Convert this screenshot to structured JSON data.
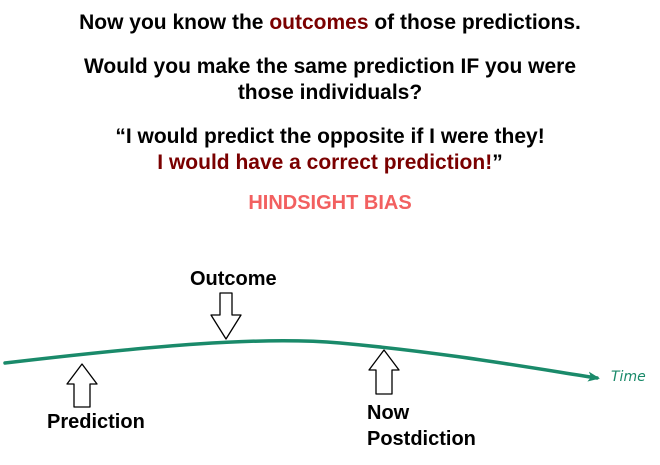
{
  "heading": {
    "line1_pre": "Now you know the ",
    "line1_accent": "outcomes",
    "line1_post": " of those predictions.",
    "question_line1": "Would you make the same prediction IF you were",
    "question_line2": "those individuals?",
    "quote_line1": "“I would predict the opposite if I were they!",
    "quote_line2_accent": "I would have a correct prediction!",
    "quote_line2_close": "”",
    "bias_label": "HINDSIGHT BIAS"
  },
  "timeline": {
    "outcome_label": "Outcome",
    "prediction_label": "Prediction",
    "now_label": "Now",
    "postdiction_label": "Postdiction",
    "axis_label": "Time"
  },
  "colors": {
    "accent": "#7a0000",
    "bias": "#f26060",
    "timeline": "#1a8a6a"
  }
}
